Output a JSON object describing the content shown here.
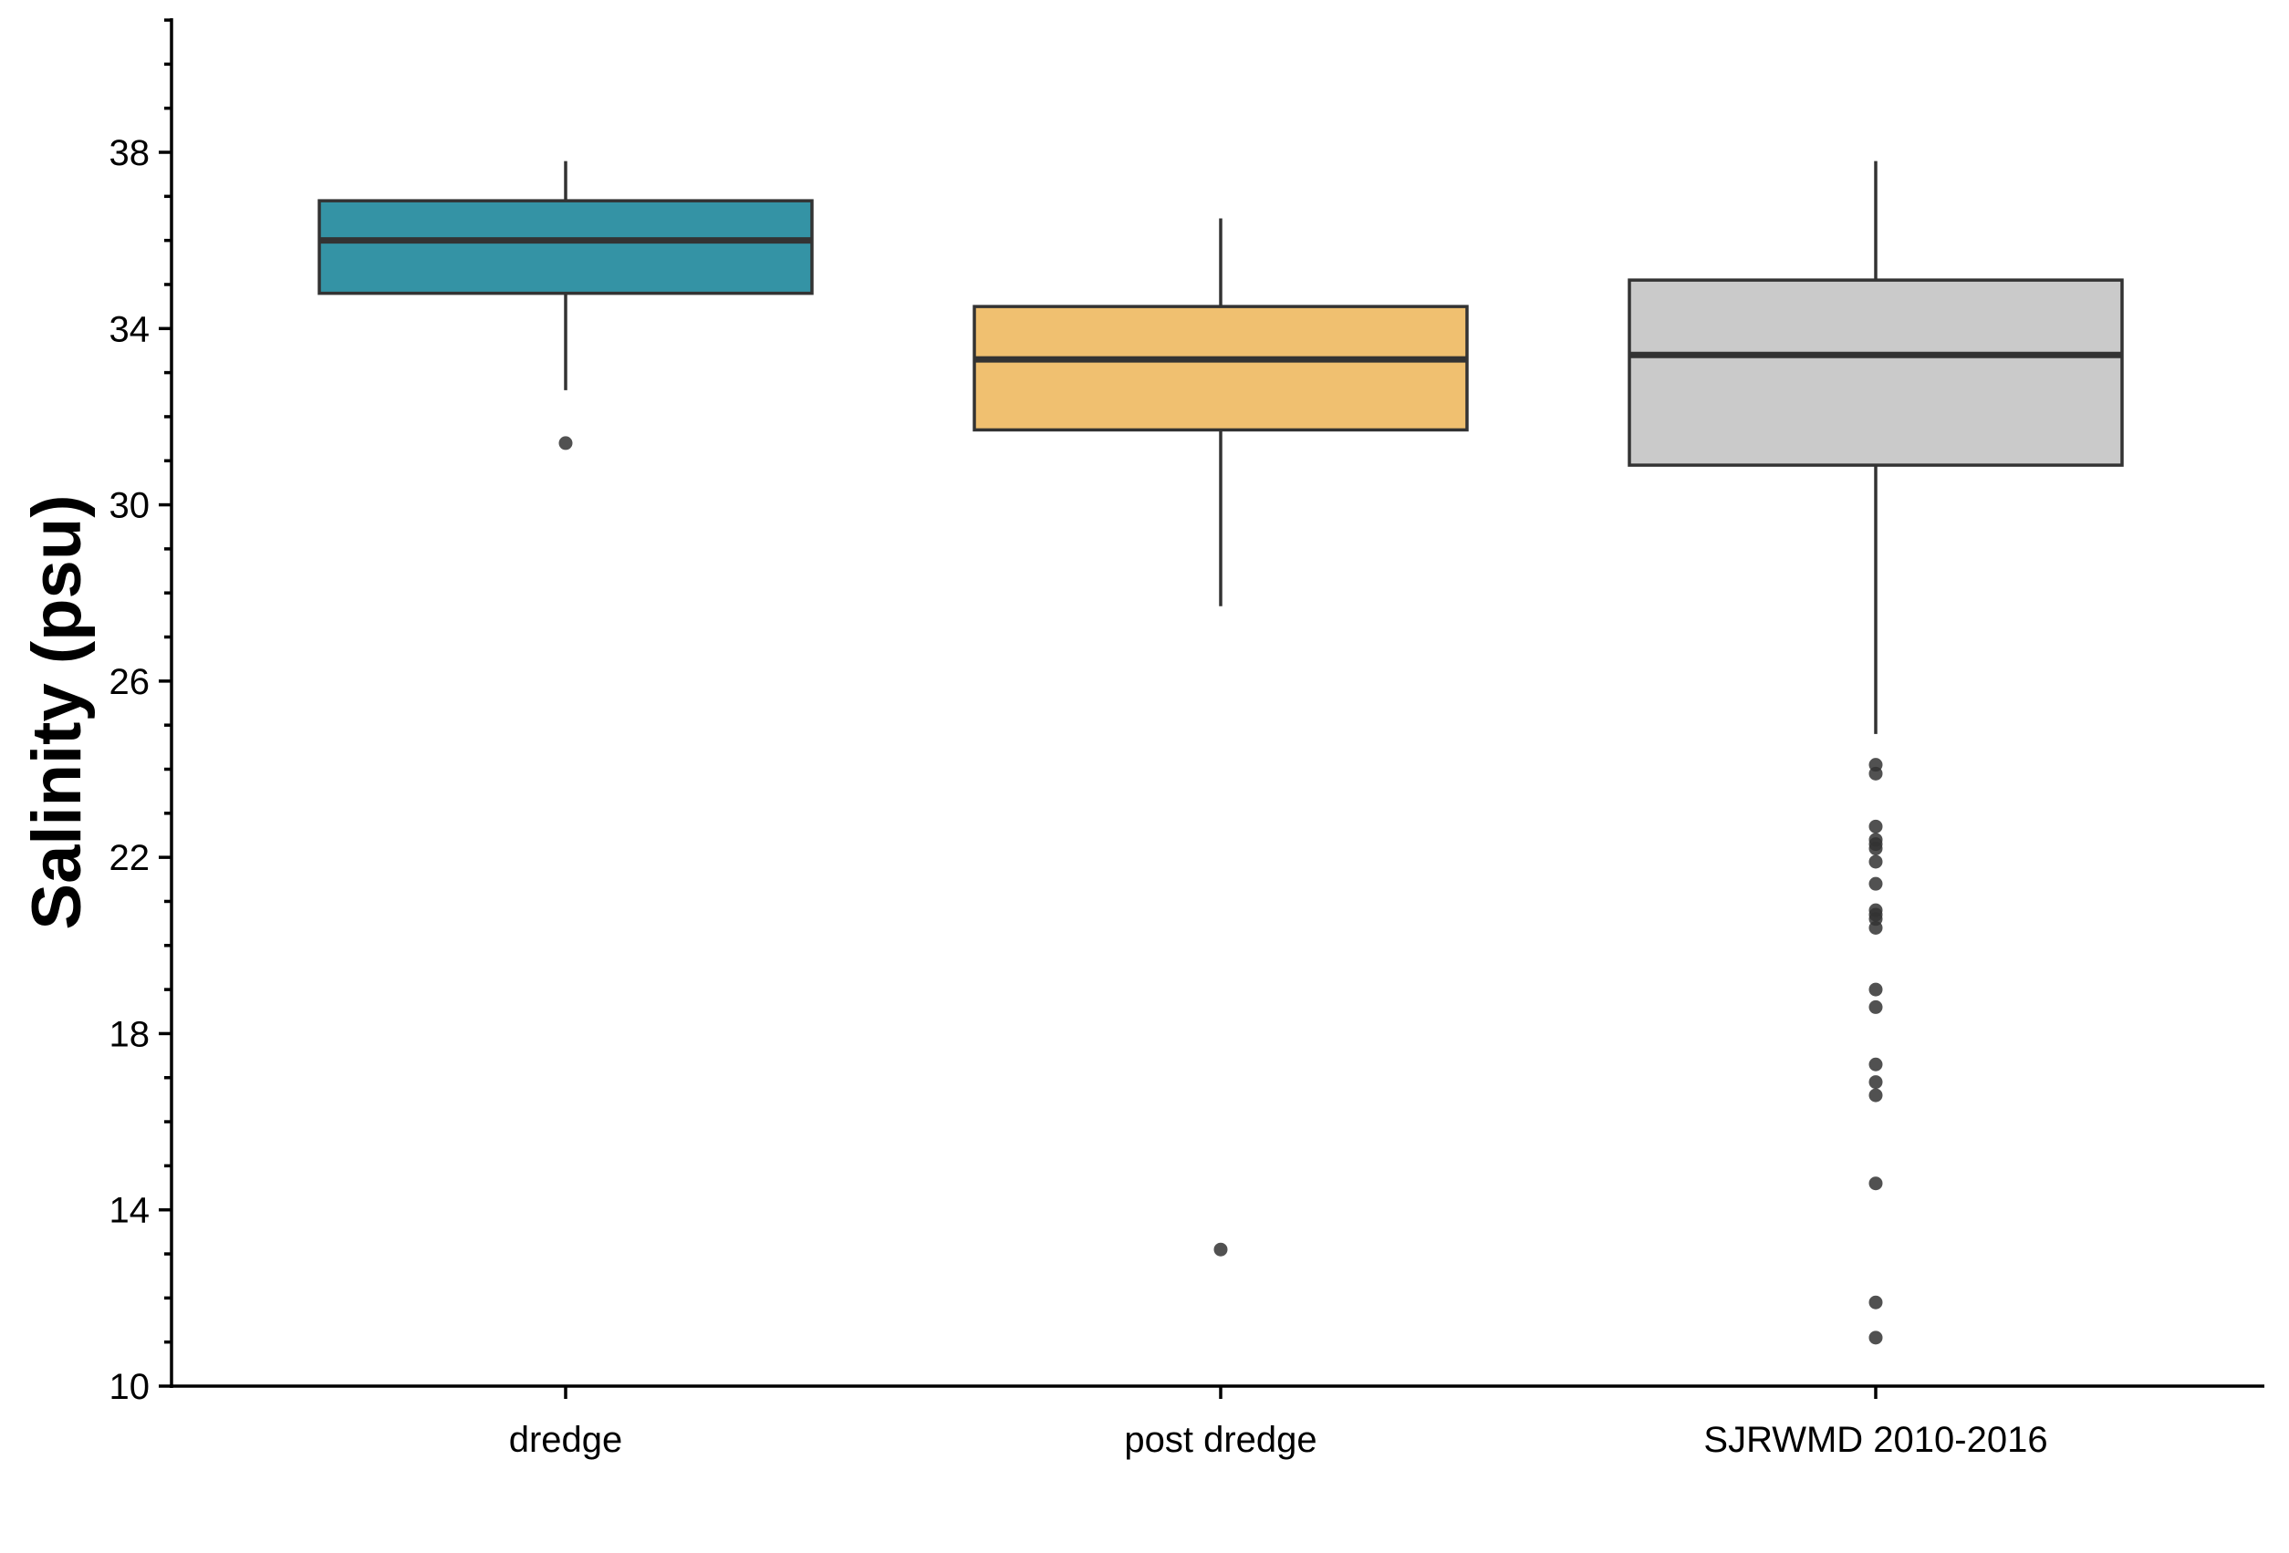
{
  "chart_data": {
    "type": "box",
    "title": "",
    "xlabel": "",
    "ylabel": "Salinity (psu)",
    "ylim": [
      10,
      41
    ],
    "y_major_ticks": [
      10,
      14,
      18,
      22,
      26,
      30,
      34,
      38
    ],
    "y_minor_ticks": [
      11,
      12,
      13,
      15,
      16,
      17,
      19,
      20,
      21,
      23,
      24,
      25,
      27,
      28,
      29,
      31,
      32,
      33,
      35,
      36,
      37,
      39,
      40,
      41
    ],
    "grid": false,
    "legend": "none",
    "categories": [
      "dredge",
      "post dredge",
      "SJRWMD 2010-2016"
    ],
    "boxes": [
      {
        "category": "dredge",
        "color": "#3493a5",
        "whisker_low": 32.6,
        "q1": 34.8,
        "median": 36.0,
        "q3": 36.9,
        "whisker_high": 37.8,
        "outliers": [
          31.4
        ]
      },
      {
        "category": "post dredge",
        "color": "#f0c070",
        "whisker_low": 27.7,
        "q1": 31.7,
        "median": 33.3,
        "q3": 34.5,
        "whisker_high": 36.5,
        "outliers": [
          13.1
        ]
      },
      {
        "category": "SJRWMD 2010-2016",
        "color": "#cacaca",
        "whisker_low": 24.8,
        "q1": 30.9,
        "median": 33.4,
        "q3": 35.1,
        "whisker_high": 37.8,
        "outliers": [
          24.1,
          23.9,
          22.7,
          22.4,
          22.3,
          22.2,
          21.9,
          21.4,
          20.8,
          20.7,
          20.6,
          20.4,
          19.0,
          18.6,
          17.3,
          16.9,
          16.6,
          14.6,
          11.9,
          11.1
        ]
      }
    ]
  }
}
